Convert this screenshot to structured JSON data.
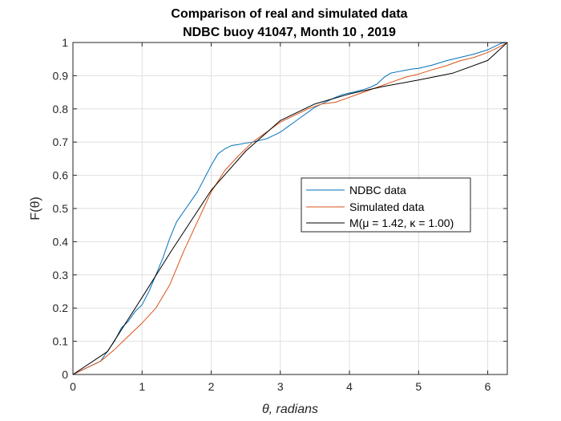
{
  "chart_data": {
    "type": "line",
    "title": "Comparison of real and simulated data",
    "subtitle": "NDBC buoy 41047, Month 10 , 2019",
    "xlabel": "θ, radians",
    "ylabel": "F(θ)",
    "xlim": [
      0,
      6.2832
    ],
    "ylim": [
      0,
      1
    ],
    "xticks": [
      "0",
      "1",
      "2",
      "3",
      "4",
      "5",
      "6"
    ],
    "yticks": [
      "0",
      "0.1",
      "0.2",
      "0.3",
      "0.4",
      "0.5",
      "0.6",
      "0.7",
      "0.8",
      "0.9",
      "1"
    ],
    "grid": true,
    "legend_position": "center-right",
    "series": [
      {
        "name": "NDBC data",
        "color": "#0072bd",
        "x": [
          0,
          0.2,
          0.4,
          0.5,
          0.6,
          0.7,
          0.8,
          0.9,
          1.0,
          1.1,
          1.2,
          1.3,
          1.4,
          1.5,
          1.6,
          1.7,
          1.8,
          1.9,
          2.0,
          2.1,
          2.2,
          2.3,
          2.4,
          2.5,
          2.6,
          2.7,
          2.8,
          2.9,
          3.0,
          3.1,
          3.2,
          3.3,
          3.4,
          3.5,
          3.6,
          3.7,
          3.8,
          3.9,
          4.0,
          4.1,
          4.2,
          4.3,
          4.4,
          4.5,
          4.6,
          4.7,
          4.8,
          4.9,
          5.0,
          5.2,
          5.4,
          5.6,
          5.8,
          6.0,
          6.2,
          6.2832
        ],
        "y": [
          0,
          0.02,
          0.04,
          0.07,
          0.1,
          0.14,
          0.16,
          0.19,
          0.21,
          0.25,
          0.3,
          0.35,
          0.41,
          0.46,
          0.49,
          0.52,
          0.55,
          0.59,
          0.63,
          0.665,
          0.68,
          0.69,
          0.693,
          0.697,
          0.7,
          0.705,
          0.71,
          0.72,
          0.73,
          0.745,
          0.76,
          0.775,
          0.79,
          0.805,
          0.815,
          0.825,
          0.835,
          0.843,
          0.848,
          0.853,
          0.858,
          0.865,
          0.875,
          0.895,
          0.908,
          0.912,
          0.916,
          0.92,
          0.922,
          0.932,
          0.945,
          0.955,
          0.965,
          0.978,
          0.998,
          1.0
        ]
      },
      {
        "name": "Simulated data",
        "color": "#d95319",
        "x": [
          0,
          0.2,
          0.4,
          0.6,
          0.8,
          1.0,
          1.2,
          1.4,
          1.6,
          1.8,
          2.0,
          2.2,
          2.4,
          2.6,
          2.8,
          3.0,
          3.2,
          3.4,
          3.6,
          3.8,
          4.0,
          4.2,
          4.4,
          4.6,
          4.8,
          5.0,
          5.2,
          5.4,
          5.6,
          5.8,
          6.0,
          6.2,
          6.2832
        ],
        "y": [
          0,
          0.02,
          0.04,
          0.075,
          0.115,
          0.155,
          0.2,
          0.27,
          0.37,
          0.46,
          0.55,
          0.615,
          0.66,
          0.7,
          0.73,
          0.76,
          0.78,
          0.8,
          0.815,
          0.82,
          0.835,
          0.85,
          0.865,
          0.88,
          0.895,
          0.905,
          0.918,
          0.93,
          0.945,
          0.955,
          0.97,
          0.99,
          1.0
        ]
      },
      {
        "name": "M(μ = 1.42, κ = 1.00)",
        "color": "#000000",
        "x": [
          0,
          0.5,
          1.0,
          1.42,
          2.0,
          2.5,
          3.0,
          3.5,
          4.0,
          4.5,
          5.0,
          5.5,
          6.0,
          6.2832
        ],
        "y": [
          0,
          0.069,
          0.232,
          0.371,
          0.555,
          0.673,
          0.765,
          0.815,
          0.845,
          0.868,
          0.887,
          0.908,
          0.946,
          1.0
        ]
      }
    ]
  }
}
